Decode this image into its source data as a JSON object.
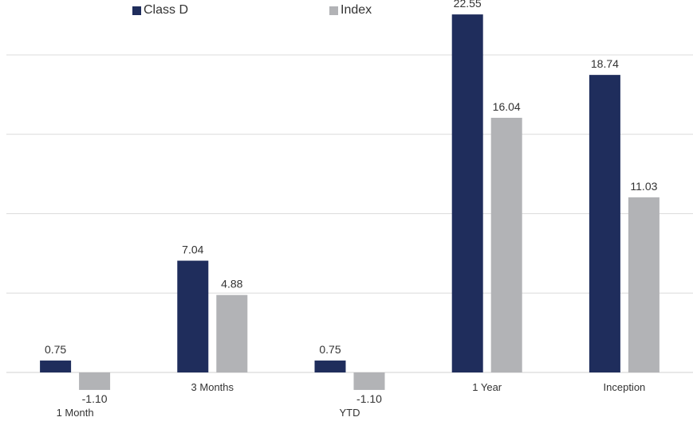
{
  "chart_data": {
    "type": "bar",
    "categories": [
      "1 Month",
      "3 Months",
      "YTD",
      "1 Year",
      "Inception"
    ],
    "series": [
      {
        "name": "Class D",
        "values": [
          0.75,
          7.04,
          0.75,
          22.55,
          18.74
        ],
        "color": "#1f2d5c"
      },
      {
        "name": "Index",
        "values": [
          -1.1,
          4.88,
          -1.1,
          16.04,
          11.03
        ],
        "color": "#b2b3b6"
      }
    ],
    "data_labels": [
      [
        "0.75",
        "7.04",
        "0.75",
        "22.55",
        "18.74"
      ],
      [
        "-1.10",
        "4.88",
        "-1.10",
        "16.04",
        "11.03"
      ]
    ],
    "ylim": [
      -2,
      25
    ],
    "grid": true,
    "legend": "top-left",
    "xlabel": "",
    "ylabel": ""
  }
}
